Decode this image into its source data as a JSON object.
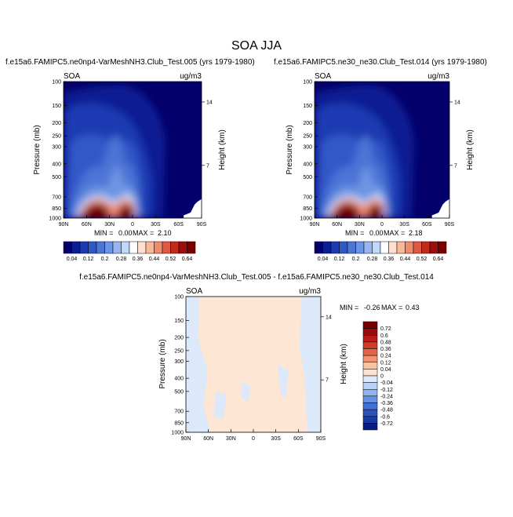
{
  "page": {
    "title": "SOA JJA"
  },
  "chart_data": [
    {
      "type": "heatmap",
      "id": "left",
      "title": "f.e15a6.FAMIPC5.ne0np4-VarMeshNH3.Club_Test.005 (yrs 1979-1980)",
      "left_label": "SOA",
      "units": "ug/m3",
      "xlabel": "",
      "ylabel": "Pressure (mb)",
      "right_label": "Height (km)",
      "xticks": [
        "90N",
        "60N",
        "30N",
        "0",
        "30S",
        "60S",
        "90S"
      ],
      "yticks": [
        "100",
        "150",
        "200",
        "250",
        "300",
        "400",
        "500",
        "700",
        "850",
        "1000"
      ],
      "height_ticks": [
        "14",
        "7"
      ],
      "min_label": "MIN =",
      "min_value": "0.00",
      "max_label": "MAX =",
      "max_value": "2.10",
      "colorbar_labels": [
        "0.04",
        "0.12",
        "0.2",
        "0.28",
        "0.36",
        "0.44",
        "0.52",
        "0.64"
      ]
    },
    {
      "type": "heatmap",
      "id": "right",
      "title": "f.e15a6.FAMIPC5.ne30_ne30.Club_Test.014 (yrs 1979-1980)",
      "left_label": "SOA",
      "units": "ug/m3",
      "xlabel": "",
      "ylabel": "Pressure (mb)",
      "right_label": "Height (km)",
      "xticks": [
        "90N",
        "60N",
        "30N",
        "0",
        "30S",
        "60S",
        "90S"
      ],
      "yticks": [
        "100",
        "150",
        "200",
        "250",
        "300",
        "400",
        "500",
        "700",
        "850",
        "1000"
      ],
      "height_ticks": [
        "14",
        "7"
      ],
      "min_label": "MIN =",
      "min_value": "0.00",
      "max_label": "MAX =",
      "max_value": "2.18",
      "colorbar_labels": [
        "0.04",
        "0.12",
        "0.2",
        "0.28",
        "0.36",
        "0.44",
        "0.52",
        "0.64"
      ]
    },
    {
      "type": "heatmap",
      "id": "diff",
      "title": "f.e15a6.FAMIPC5.ne0np4-VarMeshNH3.Club_Test.005 - f.e15a6.FAMIPC5.ne30_ne30.Club_Test.014",
      "left_label": "SOA",
      "units": "ug/m3",
      "xlabel": "",
      "ylabel": "Pressure (mb)",
      "right_label": "Height (km)",
      "xticks": [
        "90N",
        "60N",
        "30N",
        "0",
        "30S",
        "60S",
        "90S"
      ],
      "yticks": [
        "100",
        "150",
        "200",
        "250",
        "300",
        "400",
        "500",
        "700",
        "850",
        "1000"
      ],
      "height_ticks": [
        "14",
        "7"
      ],
      "min_label": "MIN =",
      "min_value": "-0.26",
      "max_label": "MAX =",
      "max_value": "0.43",
      "colorbar_labels": [
        "0.72",
        "0.6",
        "0.48",
        "0.36",
        "0.24",
        "0.12",
        "0.04",
        "0",
        "-0.04",
        "-0.12",
        "-0.24",
        "-0.36",
        "-0.48",
        "-0.6",
        "-0.72"
      ]
    }
  ],
  "colors": {
    "seq": [
      "#04006b",
      "#0a1d93",
      "#1d3bb3",
      "#3158c7",
      "#4c75d6",
      "#6e94e3",
      "#96b6ef",
      "#c3d7f8",
      "#ffffff",
      "#fde0cf",
      "#f8b99b",
      "#ef8a6d",
      "#de5a45",
      "#c22a20",
      "#9e0d0d",
      "#780000"
    ],
    "div": [
      "#780000",
      "#9a0b0b",
      "#b81b18",
      "#cf3a2b",
      "#e06545",
      "#ef9470",
      "#f8c3a3",
      "#fde0cf",
      "#dbe9fb",
      "#b9d1f7",
      "#8eb3ef",
      "#6791e3",
      "#4270d2",
      "#2a52be",
      "#1838a2",
      "#061c82"
    ],
    "field_bg": "#04006b",
    "diff_pos": "#fde6d4",
    "diff_neg": "#dbe9fb"
  }
}
